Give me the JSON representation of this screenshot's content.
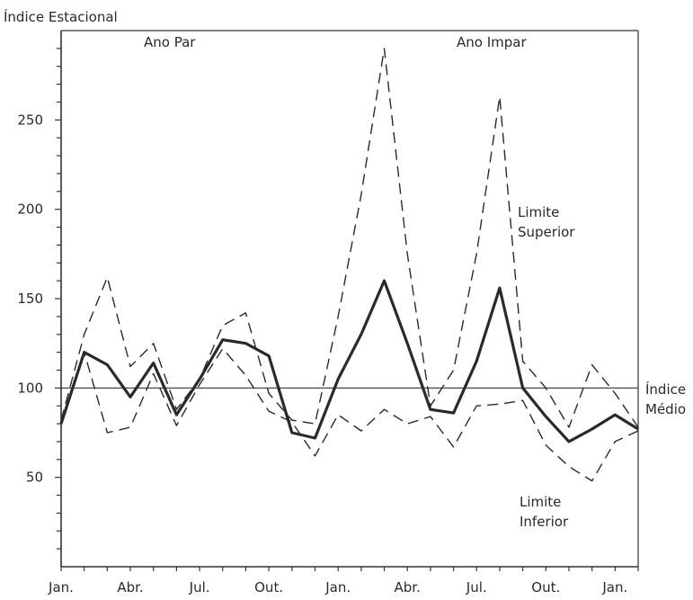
{
  "chart_data": {
    "type": "line",
    "ylabel": "Índice Estacional",
    "period_labels": [
      "Ano Par",
      "Ano Impar"
    ],
    "x_tick_labels": [
      "Jan.",
      "Abr.",
      "Jul.",
      "Out.",
      "Jan.",
      "Abr.",
      "Jul.",
      "Out.",
      "Jan."
    ],
    "y_ticks": [
      50,
      100,
      150,
      200,
      250
    ],
    "ylim": [
      0,
      300
    ],
    "reference_line": {
      "value": 100,
      "label_line1": "Índice",
      "label_line2": "Médio"
    },
    "annotations": {
      "upper_line1": "Limite",
      "upper_line2": "Superior",
      "lower_line1": "Limite",
      "lower_line2": "Inferior"
    },
    "grid": false,
    "series": [
      {
        "style": "solid-thick",
        "values": [
          80,
          120,
          113,
          95,
          114,
          85,
          105,
          127,
          125,
          118,
          75,
          72,
          105,
          130,
          160,
          125,
          88,
          86,
          115,
          156,
          100,
          84,
          70,
          77,
          85,
          77
        ]
      },
      {
        "style": "dashed",
        "values": [
          82,
          130,
          162,
          112,
          125,
          88,
          105,
          135,
          142,
          97,
          82,
          80,
          140,
          208,
          290,
          175,
          90,
          110,
          175,
          263,
          115,
          100,
          78,
          113,
          97,
          78
        ]
      },
      {
        "style": "dashed",
        "values": [
          80,
          120,
          75,
          78,
          108,
          79,
          102,
          122,
          107,
          87,
          81,
          62,
          85,
          76,
          88,
          80,
          84,
          67,
          90,
          91,
          93,
          68,
          56,
          48,
          70,
          76
        ]
      }
    ]
  }
}
